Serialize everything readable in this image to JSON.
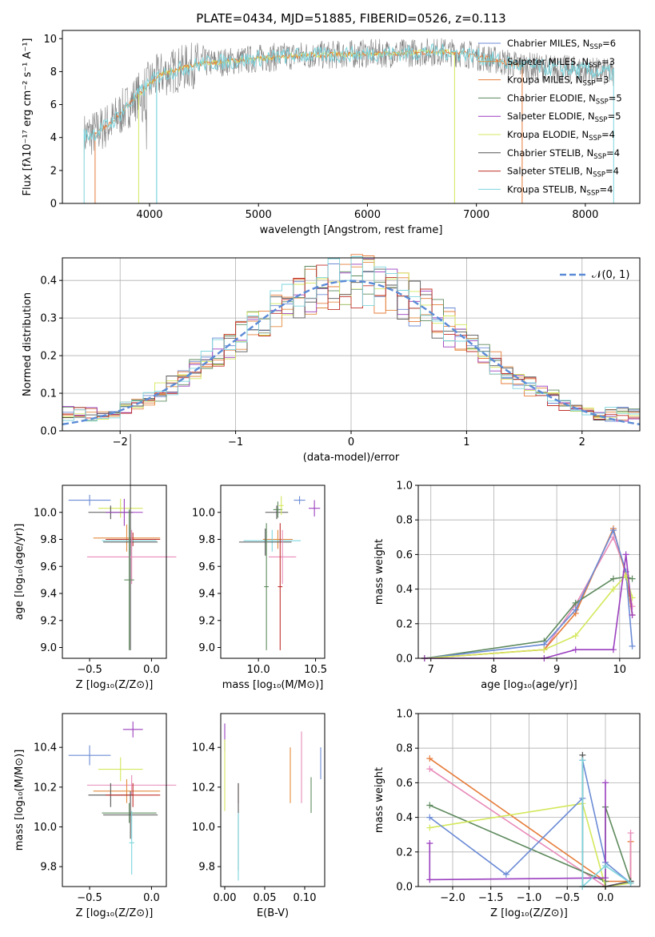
{
  "chart_data": [
    {
      "type": "line",
      "title": "PLATE=0434, MJD=51885, FIBERID=0526, z=0.113",
      "xlabel": "wavelength [Angstrom, rest frame]",
      "ylabel": "Flux [fλ10⁻¹⁷ erg cm⁻² s⁻¹ A⁻¹]",
      "xlim": [
        3200,
        8500
      ],
      "ylim": [
        0,
        10.5
      ],
      "xticks": [
        "4000",
        "5000",
        "6000",
        "7000",
        "8000"
      ],
      "yticks": [
        "0",
        "2",
        "4",
        "6",
        "8",
        "10"
      ],
      "legend": "top-right",
      "spectrum_points_x": [
        3400,
        3500,
        3650,
        3800,
        3900,
        4000,
        4100,
        4200,
        4350,
        4500,
        4700,
        4860,
        5000,
        5200,
        5400,
        5600,
        5800,
        6000,
        6200,
        6400,
        6563,
        6700,
        6900,
        7100,
        7300,
        7500,
        7700,
        7900,
        8100,
        8250
      ],
      "spectrum_points_y": [
        4.1,
        4.3,
        4.9,
        5.9,
        6.6,
        7.3,
        7.8,
        8.0,
        8.3,
        8.5,
        8.6,
        8.7,
        8.8,
        8.9,
        9.0,
        9.0,
        9.05,
        9.1,
        9.1,
        9.15,
        9.2,
        9.2,
        9.1,
        8.8,
        8.5,
        8.3,
        8.2,
        8.1,
        8.0,
        7.9
      ],
      "series": [
        {
          "name": "Chabrier MILES, N",
          "sub": "SSP",
          "suffix": "=6",
          "color": "#6b8bd6"
        },
        {
          "name": "Salpeter MILES, N",
          "sub": "SSP",
          "suffix": "=3",
          "color": "#e38a3d"
        },
        {
          "name": "Kroupa MILES, N",
          "sub": "SSP",
          "suffix": "=3",
          "color": "#e67c3a"
        },
        {
          "name": "Chabrier ELODIE, N",
          "sub": "SSP",
          "suffix": "=5",
          "color": "#5e8a5e"
        },
        {
          "name": "Salpeter ELODIE, N",
          "sub": "SSP",
          "suffix": "=5",
          "color": "#9b3fbf"
        },
        {
          "name": "Kroupa ELODIE, N",
          "sub": "SSP",
          "suffix": "=4",
          "color": "#d4e85c"
        },
        {
          "name": "Chabrier STELIB, N",
          "sub": "SSP",
          "suffix": "=4",
          "color": "#555555"
        },
        {
          "name": "Salpeter STELIB, N",
          "sub": "SSP",
          "suffix": "=4",
          "color": "#c0302a"
        },
        {
          "name": "Kroupa STELIB, N",
          "sub": "SSP",
          "suffix": "=4",
          "color": "#7dd5dd"
        }
      ]
    },
    {
      "type": "bar",
      "xlabel": "(data-model)/error",
      "ylabel": "Normed distribution",
      "xlim": [
        -2.5,
        2.5
      ],
      "ylim": [
        0,
        0.46
      ],
      "xticks": [
        "−2",
        "−1",
        "0",
        "1",
        "2"
      ],
      "yticks": [
        "0.0",
        "0.1",
        "0.2",
        "0.3",
        "0.4"
      ],
      "legend": "top-right",
      "legend_label": "𝒩(0, 1)",
      "bin_width": 0.1
    },
    {
      "type": "scatter",
      "xlabel": "Z [log₁₀(Z/Z⊙)]",
      "ylabel": "age  [log₁₀(age/yr)]",
      "xlim": [
        -0.72,
        0.12
      ],
      "ylim": [
        8.92,
        10.2
      ],
      "xticks": [
        "−0.5",
        "0.0"
      ],
      "yticks": [
        "9.0",
        "9.2",
        "9.4",
        "9.6",
        "9.8",
        "10.0"
      ],
      "points": [
        {
          "x": -0.5,
          "y": 10.09,
          "xerr": 0.17,
          "yerr": 0.04,
          "color": "#6b8bd6"
        },
        {
          "x": -0.25,
          "y": 10.03,
          "xerr": 0.18,
          "yerr": 0.07,
          "color": "#d4e85c"
        },
        {
          "x": -0.33,
          "y": 10.0,
          "xerr": 0.18,
          "yerr": 0.05,
          "color": "#555555"
        },
        {
          "x": -0.22,
          "y": 10.0,
          "xerr": 0.15,
          "yerr": 0.1,
          "color": "#9b3fbf"
        },
        {
          "x": -0.2,
          "y": 9.81,
          "xerr": 0.27,
          "yerr": 0.1,
          "color": "#e38a3d"
        },
        {
          "x": -0.15,
          "y": 9.8,
          "xerr": 0.22,
          "yerr": 0.05,
          "color": "#c0302a"
        },
        {
          "x": -0.18,
          "y": 9.79,
          "xerr": 0.22,
          "yerr": 0.1,
          "color": "#7dd5dd"
        },
        {
          "x": -0.17,
          "y": 9.78,
          "xerr": 0.22,
          "yerr": 0.8,
          "color": "#555555"
        },
        {
          "x": -0.16,
          "y": 9.67,
          "xerr": 0.36,
          "yerr": 0.2,
          "color": "#e88ab8"
        },
        {
          "x": -0.18,
          "y": 9.5,
          "xerr": 0.04,
          "yerr": 0.52,
          "color": "#5e8a5e"
        }
      ]
    },
    {
      "type": "scatter",
      "xlabel": "mass [log₁₀(M/M⊙)]",
      "ylabel": "",
      "xlim": [
        9.67,
        10.58
      ],
      "ylim": [
        8.92,
        10.2
      ],
      "xticks": [
        "10.0",
        "10.5"
      ],
      "yticks": [
        "9.0",
        "9.2",
        "9.4",
        "9.6",
        "9.8",
        "10.0"
      ],
      "points": [
        {
          "x": 10.36,
          "y": 10.09,
          "xerr": 0.05,
          "yerr": 0.03,
          "color": "#6b8bd6"
        },
        {
          "x": 10.49,
          "y": 10.03,
          "xerr": 0.05,
          "yerr": 0.06,
          "color": "#9b3fbf"
        },
        {
          "x": 10.16,
          "y": 10.0,
          "xerr": 0.1,
          "yerr": 0.05,
          "color": "#555555"
        },
        {
          "x": 10.17,
          "y": 10.02,
          "xerr": 0.04,
          "yerr": 0.06,
          "color": "#5e8a5e"
        },
        {
          "x": 10.2,
          "y": 10.05,
          "xerr": 0.02,
          "yerr": 0.07,
          "color": "#d4e85c"
        },
        {
          "x": 10.17,
          "y": 9.8,
          "xerr": 0.13,
          "yerr": 0.07,
          "color": "#e38a3d"
        },
        {
          "x": 10.12,
          "y": 9.79,
          "xerr": 0.25,
          "yerr": 0.08,
          "color": "#7dd5dd"
        },
        {
          "x": 10.06,
          "y": 9.78,
          "xerr": 0.23,
          "yerr": 0.1,
          "color": "#555555"
        },
        {
          "x": 10.21,
          "y": 9.67,
          "xerr": 0.12,
          "yerr": 0.2,
          "color": "#e88ab8"
        },
        {
          "x": 10.19,
          "y": 9.45,
          "xerr": 0.02,
          "yerr": 0.47,
          "color": "#c0302a"
        },
        {
          "x": 10.07,
          "y": 9.45,
          "xerr": 0.02,
          "yerr": 0.47,
          "color": "#5e8a5e"
        }
      ]
    },
    {
      "type": "line",
      "xlabel": "age  [log₁₀(age/yr)]",
      "ylabel": "mass weight",
      "xlim": [
        6.8,
        10.32
      ],
      "ylim": [
        0,
        1.0
      ],
      "xticks": [
        "7",
        "8",
        "9",
        "10"
      ],
      "yticks": [
        "0.0",
        "0.2",
        "0.4",
        "0.6",
        "0.8",
        "1.0"
      ],
      "x": [
        6.9,
        8.8,
        9.3,
        9.9,
        10.1,
        10.2
      ],
      "series": [
        {
          "color": "#e88ab8",
          "values": [
            0.0,
            0.05,
            0.31,
            0.7,
            0.5,
            0.3
          ]
        },
        {
          "color": "#e67c3a",
          "values": [
            0.0,
            0.05,
            0.26,
            0.75,
            0.48,
            0.25
          ]
        },
        {
          "color": "#5e8a5e",
          "values": [
            0.0,
            0.1,
            0.32,
            0.46,
            0.47,
            0.46
          ]
        },
        {
          "color": "#6b8bd6",
          "values": [
            0.0,
            0.08,
            0.28,
            0.74,
            0.5,
            0.07
          ]
        },
        {
          "color": "#d4e85c",
          "values": [
            0.0,
            0.05,
            0.13,
            0.4,
            0.48,
            0.35
          ]
        },
        {
          "color": "#9b3fbf",
          "values": [
            0.0,
            0.0,
            0.05,
            0.05,
            0.6,
            0.25
          ]
        }
      ]
    },
    {
      "type": "scatter",
      "xlabel": "Z [log₁₀(Z/Z⊙)]",
      "ylabel": "mass [log₁₀(M/M⊙)]",
      "xlim": [
        -0.72,
        0.12
      ],
      "ylim": [
        9.7,
        10.57
      ],
      "xticks": [
        "−0.5",
        "0.0"
      ],
      "yticks": [
        "9.8",
        "10.0",
        "10.2",
        "10.4"
      ],
      "points": [
        {
          "x": -0.5,
          "y": 10.36,
          "xerr": 0.17,
          "yerr": 0.05,
          "color": "#6b8bd6"
        },
        {
          "x": -0.15,
          "y": 10.49,
          "xerr": 0.08,
          "yerr": 0.04,
          "color": "#9b3fbf"
        },
        {
          "x": -0.25,
          "y": 10.29,
          "xerr": 0.18,
          "yerr": 0.06,
          "color": "#d4e85c"
        },
        {
          "x": -0.16,
          "y": 10.21,
          "xerr": 0.36,
          "yerr": 0.05,
          "color": "#e88ab8"
        },
        {
          "x": -0.2,
          "y": 10.18,
          "xerr": 0.27,
          "yerr": 0.06,
          "color": "#e38a3d"
        },
        {
          "x": -0.33,
          "y": 10.16,
          "xerr": 0.18,
          "yerr": 0.06,
          "color": "#555555"
        },
        {
          "x": -0.15,
          "y": 10.16,
          "xerr": 0.22,
          "yerr": 0.06,
          "color": "#c0302a"
        },
        {
          "x": -0.18,
          "y": 10.07,
          "xerr": 0.22,
          "yerr": 0.05,
          "color": "#5e8a5e"
        },
        {
          "x": -0.17,
          "y": 10.06,
          "xerr": 0.22,
          "yerr": 0.12,
          "color": "#555555"
        },
        {
          "x": -0.16,
          "y": 9.92,
          "xerr": 0.02,
          "yerr": 0.16,
          "color": "#7dd5dd"
        }
      ]
    },
    {
      "type": "scatter",
      "xlabel": "E(B-V)",
      "ylabel": "",
      "xlim": [
        -0.005,
        0.125
      ],
      "ylim": [
        9.7,
        10.57
      ],
      "xticks": [
        "0.00",
        "0.05",
        "0.10"
      ],
      "yticks": [
        "9.8",
        "10.0",
        "10.2",
        "10.4"
      ],
      "points": [
        {
          "x": 0.0,
          "y": 10.45,
          "yerr": 0.07,
          "color": "#9b3fbf"
        },
        {
          "x": 0.0,
          "y": 10.26,
          "yerr": 0.18,
          "color": "#d4e85c"
        },
        {
          "x": 0.017,
          "y": 10.17,
          "yerr": 0.05,
          "color": "#c0302a"
        },
        {
          "x": 0.017,
          "y": 10.0,
          "yerr": 0.22,
          "color": "#555555"
        },
        {
          "x": 0.017,
          "y": 9.9,
          "yerr": 0.17,
          "color": "#7dd5dd"
        },
        {
          "x": 0.082,
          "y": 10.26,
          "yerr": 0.14,
          "color": "#e38a3d"
        },
        {
          "x": 0.096,
          "y": 10.3,
          "yerr": 0.18,
          "color": "#e88ab8"
        },
        {
          "x": 0.108,
          "y": 10.16,
          "yerr": 0.09,
          "color": "#5e8a5e"
        },
        {
          "x": 0.12,
          "y": 10.32,
          "yerr": 0.08,
          "color": "#6b8bd6"
        }
      ]
    },
    {
      "type": "line",
      "xlabel": "Z [log₁₀(Z/Z⊙)]",
      "ylabel": "mass weight",
      "xlim": [
        -2.45,
        0.45
      ],
      "ylim": [
        0,
        1.0
      ],
      "xticks": [
        "−2.0",
        "−1.5",
        "−1.0",
        "−0.5",
        "0.0"
      ],
      "yticks": [
        "0.0",
        "0.2",
        "0.4",
        "0.6",
        "0.8",
        "1.0"
      ],
      "series_xy": [
        {
          "color": "#e67c3a",
          "x": [
            -2.3,
            0.0,
            0.33,
            0.33
          ],
          "y": [
            0.74,
            0.03,
            0.03,
            0.26
          ]
        },
        {
          "color": "#e88ab8",
          "x": [
            -2.3,
            0.0,
            0.33,
            0.33
          ],
          "y": [
            0.68,
            0.0,
            0.03,
            0.31
          ]
        },
        {
          "color": "#5e8a5e",
          "x": [
            -2.3,
            0.0,
            0.0,
            0.33
          ],
          "y": [
            0.47,
            0.03,
            0.46,
            0.03
          ]
        },
        {
          "color": "#d4e85c",
          "x": [
            -2.3,
            -0.3,
            0.0,
            0.33
          ],
          "y": [
            0.34,
            0.48,
            0.0,
            0.02
          ]
        },
        {
          "color": "#6b8bd6",
          "x": [
            -2.3,
            -1.3,
            -0.3,
            -0.3,
            0.0,
            0.33
          ],
          "y": [
            0.4,
            0.07,
            0.51,
            0.73,
            0.14,
            0.02
          ]
        },
        {
          "color": "#9b3fbf",
          "x": [
            -2.3,
            -2.3,
            0.0,
            0.0
          ],
          "y": [
            0.25,
            0.04,
            0.05,
            0.6
          ]
        },
        {
          "color": "#555555",
          "x": [
            -0.3,
            -0.3,
            0.0,
            0.33
          ],
          "y": [
            0.76,
            0.0,
            0.0,
            0.03
          ]
        },
        {
          "color": "#7dd5dd",
          "x": [
            -0.3,
            -0.3,
            0.0,
            0.33
          ],
          "y": [
            0.73,
            0.0,
            0.12,
            0.02
          ]
        }
      ]
    }
  ]
}
